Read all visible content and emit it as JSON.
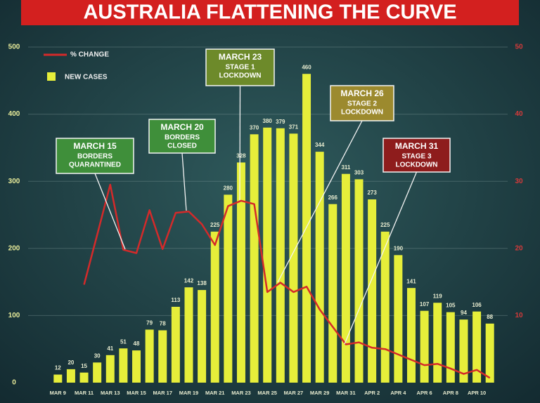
{
  "chart_data": {
    "type": "bar_line",
    "title": "AUSTRALIA FLATTENING THE CURVE",
    "categories": [
      "MAR 9",
      null,
      "MAR 11",
      null,
      "MAR 13",
      null,
      "MAR 15",
      null,
      "MAR 17",
      null,
      "MAR 19",
      null,
      "MAR 21",
      null,
      "MAR 23",
      null,
      "MAR 25",
      null,
      "MAR 27",
      null,
      "MAR 29",
      null,
      "MAR 31",
      null,
      "APR 2",
      null,
      "APR 4",
      null,
      "APR 6",
      null,
      "APR 8",
      null,
      "APR 10",
      null
    ],
    "series": [
      {
        "name": "NEW CASES",
        "color": "#e6ee3a",
        "values": [
          12,
          20,
          15,
          30,
          41,
          51,
          48,
          79,
          78,
          113,
          142,
          138,
          225,
          280,
          328,
          370,
          380,
          379,
          371,
          460,
          344,
          266,
          311,
          303,
          273,
          225,
          190,
          141,
          107,
          119,
          105,
          94,
          106,
          88
        ]
      },
      {
        "name": "% CHANGE",
        "color": "#d42a2a",
        "axis": "y2",
        "values": [
          null,
          null,
          14.6,
          22,
          29.5,
          19.8,
          19.3,
          25.7,
          19.9,
          25.3,
          25.5,
          23.6,
          20.5,
          26.3,
          27.1,
          26.6,
          13.5,
          14.9,
          13.5,
          14.3,
          10.9,
          8.3,
          5.7,
          6.0,
          5.2,
          5.0,
          4.2,
          3.4,
          2.6,
          2.8,
          2.1,
          1.3,
          1.9,
          0.7
        ]
      }
    ],
    "ylim": [
      0,
      500
    ],
    "yticks": [
      0,
      100,
      200,
      300,
      400,
      500
    ],
    "y2lim": [
      0,
      50
    ],
    "y2ticks": [
      10,
      20,
      30,
      40,
      50
    ],
    "grid": true,
    "annotations": [
      {
        "lines": [
          "MARCH 15",
          "BORDERS",
          "QUARANTINED"
        ],
        "color": "#3f8f3a"
      },
      {
        "lines": [
          "MARCH 20",
          "BORDERS",
          "CLOSED"
        ],
        "color": "#3f8f3a"
      },
      {
        "lines": [
          "MARCH 23",
          "STAGE 1",
          "LOCKDOWN"
        ],
        "color": "#6d8a2a"
      },
      {
        "lines": [
          "MARCH 26",
          "STAGE 2",
          "LOCKDOWN"
        ],
        "color": "#9c8a2e"
      },
      {
        "lines": [
          "MARCH 31",
          "STAGE 3",
          "LOCKDOWN"
        ],
        "color": "#8e1c1c"
      }
    ]
  }
}
